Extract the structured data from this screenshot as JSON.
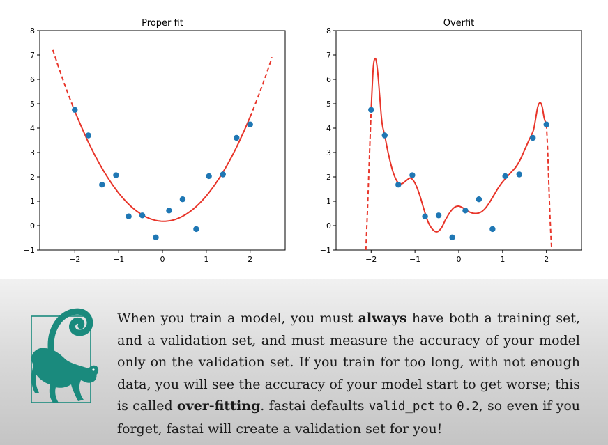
{
  "colors": {
    "points": "#1f77b4",
    "fit_line": "#e8352a",
    "lemur": "#1a8a7d",
    "lower_background": "#d4d4d4"
  },
  "chart_data": [
    {
      "type": "scatter",
      "title": "Proper fit",
      "xlabel": "",
      "ylabel": "",
      "xlim": [
        -2.8,
        2.8
      ],
      "ylim": [
        -1,
        8
      ],
      "xticks": [
        -2,
        -1,
        0,
        1,
        2
      ],
      "yticks": [
        -1,
        0,
        1,
        2,
        3,
        4,
        5,
        6,
        7,
        8
      ],
      "grid": false,
      "points": {
        "x": [
          -2.0,
          -1.69,
          -1.38,
          -1.06,
          -0.77,
          -0.46,
          -0.15,
          0.15,
          0.46,
          0.77,
          1.06,
          1.38,
          1.69,
          2.0
        ],
        "y": [
          4.75,
          3.7,
          1.68,
          2.07,
          0.38,
          0.42,
          -0.48,
          0.62,
          1.08,
          -0.14,
          2.03,
          2.1,
          3.6,
          4.15
        ]
      },
      "fit_curve": {
        "kind": "quadratic",
        "a": 1.1,
        "b": -0.06,
        "c": 0.18,
        "solid_range": [
          -2,
          2
        ],
        "dashed_range": [
          -2.5,
          2.5
        ]
      }
    },
    {
      "type": "scatter",
      "title": "Overfit",
      "xlabel": "",
      "ylabel": "",
      "xlim": [
        -2.8,
        2.8
      ],
      "ylim": [
        -1,
        8
      ],
      "xticks": [
        -2,
        -1,
        0,
        1,
        2
      ],
      "yticks": [
        -1,
        0,
        1,
        2,
        3,
        4,
        5,
        6,
        7,
        8
      ],
      "grid": false,
      "points": {
        "x": [
          -2.0,
          -1.69,
          -1.38,
          -1.06,
          -0.77,
          -0.46,
          -0.15,
          0.15,
          0.46,
          0.77,
          1.06,
          1.38,
          1.69,
          2.0
        ],
        "y": [
          4.75,
          3.7,
          1.68,
          2.07,
          0.38,
          0.42,
          -0.48,
          0.62,
          1.08,
          -0.14,
          2.03,
          2.1,
          3.6,
          4.15
        ]
      },
      "fit_curve": {
        "kind": "polyline",
        "solid": {
          "x": [
            -2.0,
            -1.95,
            -1.9,
            -1.85,
            -1.8,
            -1.75,
            -1.69,
            -1.6,
            -1.5,
            -1.4,
            -1.3,
            -1.2,
            -1.1,
            -1.0,
            -0.9,
            -0.8,
            -0.7,
            -0.6,
            -0.5,
            -0.4,
            -0.3,
            -0.2,
            -0.1,
            0.0,
            0.1,
            0.2,
            0.3,
            0.4,
            0.5,
            0.6,
            0.7,
            0.8,
            0.9,
            1.0,
            1.1,
            1.2,
            1.3,
            1.4,
            1.5,
            1.6,
            1.7,
            1.75,
            1.8,
            1.85,
            1.9,
            1.95,
            2.0
          ],
          "y": [
            4.75,
            6.5,
            6.85,
            6.3,
            5.2,
            4.2,
            3.7,
            2.9,
            2.2,
            1.8,
            1.72,
            1.85,
            1.95,
            1.75,
            1.3,
            0.7,
            0.15,
            -0.15,
            -0.25,
            -0.1,
            0.25,
            0.55,
            0.75,
            0.8,
            0.72,
            0.6,
            0.52,
            0.5,
            0.55,
            0.7,
            0.95,
            1.25,
            1.55,
            1.8,
            2.0,
            2.2,
            2.4,
            2.7,
            3.1,
            3.5,
            3.9,
            4.35,
            4.85,
            5.05,
            4.9,
            4.4,
            4.15
          ]
        },
        "dashed_left": {
          "x": [
            -2.12,
            -2.08,
            -2.04,
            -2.0
          ],
          "y": [
            -1.0,
            0.8,
            2.8,
            4.75
          ]
        },
        "dashed_right": {
          "x": [
            2.0,
            2.03,
            2.06,
            2.09,
            2.12
          ],
          "y": [
            4.15,
            3.0,
            1.4,
            0.0,
            -1.0
          ]
        }
      }
    }
  ],
  "note": {
    "text_1": "When you train a model, you must ",
    "bold_1": "always",
    "text_2": " have both a training set, and a validation set, and must measure the accuracy of your model only on the validation set. If you train for too long, with not enough data, you will see the accuracy of your model start to get worse; this is called ",
    "bold_2": "over-fitting",
    "text_3": ". fastai defaults ",
    "code_1": "valid_pct",
    "text_4": " to ",
    "code_2": "0.2",
    "text_5": ", so even if you forget, fastai will create a validation set for you!"
  },
  "lemur_icon": "ring-tailed-lemur-icon"
}
